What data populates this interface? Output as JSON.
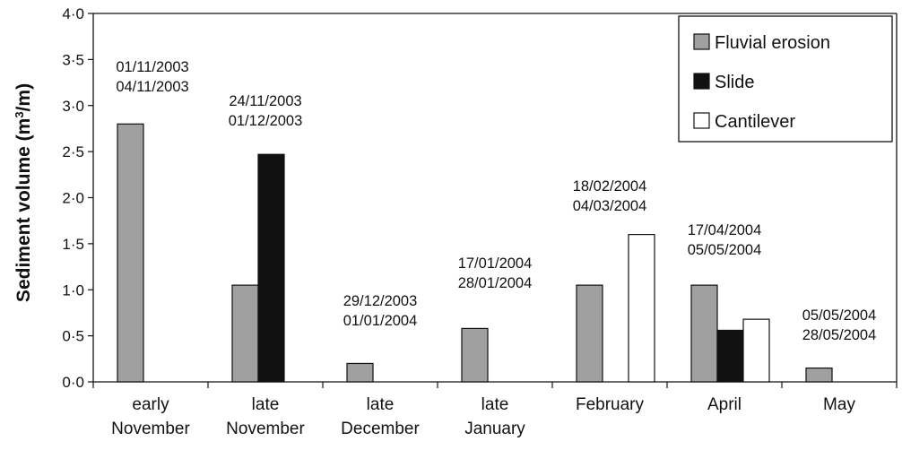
{
  "chart_data": {
    "type": "bar",
    "ylabel_main": "Sediment volume (m",
    "ylabel_sup": "3",
    "ylabel_tail": "/m)",
    "ylim": [
      0,
      4
    ],
    "yticks": [
      "0·0",
      "0·5",
      "1·0",
      "1·5",
      "2·0",
      "2·5",
      "3·0",
      "3·5",
      "4·0"
    ],
    "grid": false,
    "legend_position": "top-right",
    "categories": [
      [
        "early",
        "November"
      ],
      [
        "late",
        "November"
      ],
      [
        "late",
        "December"
      ],
      [
        "late",
        "January"
      ],
      [
        "February",
        ""
      ],
      [
        "April",
        ""
      ],
      [
        "May",
        ""
      ]
    ],
    "date_annotations": [
      [
        "01/11/2003",
        "04/11/2003"
      ],
      [
        "24/11/2003",
        "01/12/2003"
      ],
      [
        "29/12/2003",
        "01/01/2004"
      ],
      [
        "17/01/2004",
        "28/01/2004"
      ],
      [
        "18/02/2004",
        "04/03/2004"
      ],
      [
        "17/04/2004",
        "05/05/2004"
      ],
      [
        "05/05/2004",
        "28/05/2004"
      ]
    ],
    "series": [
      {
        "name": "Fluvial erosion",
        "color": "#a0a0a0",
        "values": [
          2.8,
          1.05,
          0.2,
          0.58,
          1.05,
          1.05,
          0.15
        ]
      },
      {
        "name": "Slide",
        "color": "#111111",
        "values": [
          0,
          2.47,
          0,
          0,
          0,
          0.56,
          0
        ]
      },
      {
        "name": "Cantilever",
        "color": "#ffffff",
        "values": [
          0,
          0,
          0,
          0,
          1.6,
          0.68,
          0
        ]
      }
    ]
  }
}
